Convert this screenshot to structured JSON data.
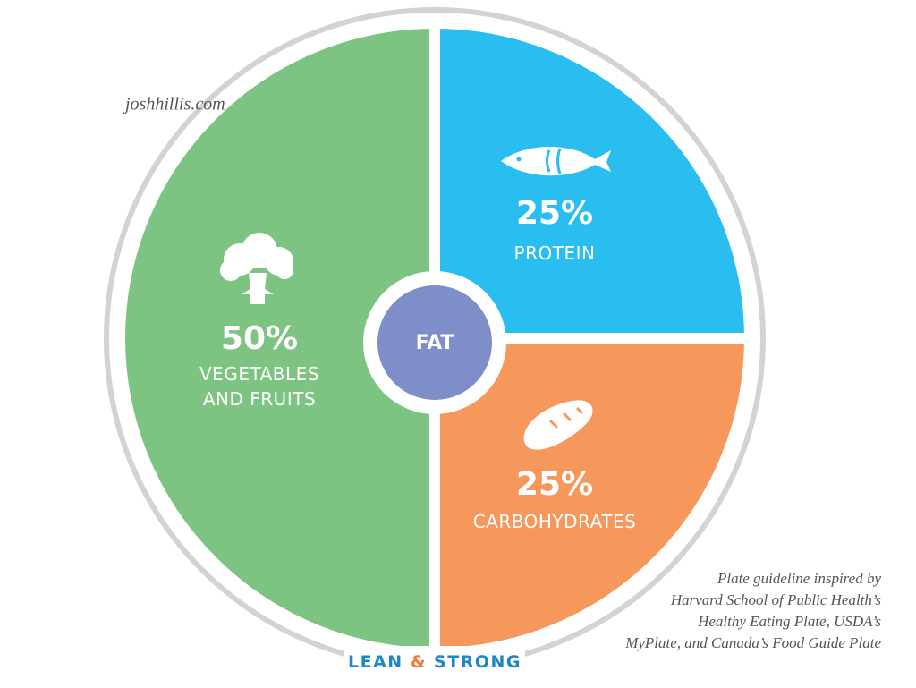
{
  "chart_data": {
    "type": "pie",
    "categories": [
      "PROTEIN",
      "CARBOHYDRATES",
      "VEGETABLES AND FRUITS"
    ],
    "values": [
      25,
      25,
      50
    ],
    "value_labels": [
      "25%",
      "25%",
      "50%"
    ],
    "colors": [
      "#29bdf0",
      "#f6975b",
      "#7dc483"
    ],
    "center_label": "FAT",
    "center_color": "#7d8ec8"
  },
  "source": "joshhillis.com",
  "footnote": [
    "Plate guideline inspired by",
    "Harvard School of Public Health’s",
    "Healthy Eating Plate, USDA’s",
    "MyPlate, and Canada’s Food Guide Plate"
  ],
  "brand": {
    "left": "LEAN",
    "middle": "&",
    "right": "STRONG"
  }
}
